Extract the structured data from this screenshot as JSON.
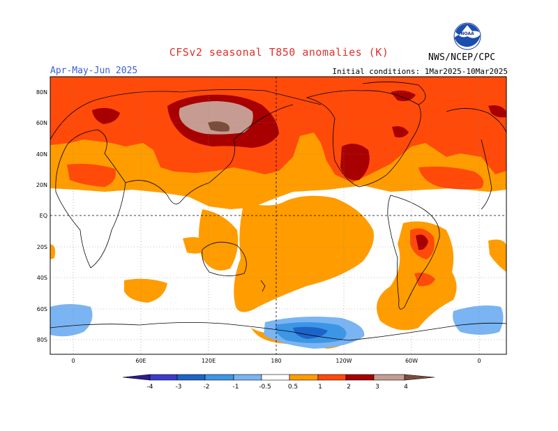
{
  "header": {
    "title": "CFSv2 seasonal T850 anomalies (K)",
    "season": "Apr-May-Jun 2025",
    "initial_conditions": "Initial conditions: 1Mar2025-10Mar2025",
    "agency": "NWS/NCEP/CPC",
    "logo_text": "NOAA"
  },
  "map": {
    "lat_labels": [
      "80N",
      "60N",
      "40N",
      "20N",
      "EQ",
      "20S",
      "40S",
      "60S",
      "80S"
    ],
    "lon_labels": [
      "0",
      "60E",
      "120E",
      "180",
      "120W",
      "60W",
      "0"
    ]
  },
  "colorbar": {
    "labels": [
      "-4",
      "-3",
      "-2",
      "-1",
      "-0.5",
      "0.5",
      "1",
      "2",
      "3",
      "4"
    ],
    "colors": {
      "lt_-4": "#2d1b8f",
      "-4_-3": "#3c3ccc",
      "-3_-2": "#1e64c8",
      "-2_-1": "#3c96e6",
      "-1_-0.5": "#7ab4f2",
      "neutral": "#ffffff",
      "0.5_1": "#ff9c00",
      "1_2": "#ff4a0a",
      "2_3": "#a80000",
      "3_4": "#c69c92",
      "gt_4": "#7a4c3c"
    }
  }
}
